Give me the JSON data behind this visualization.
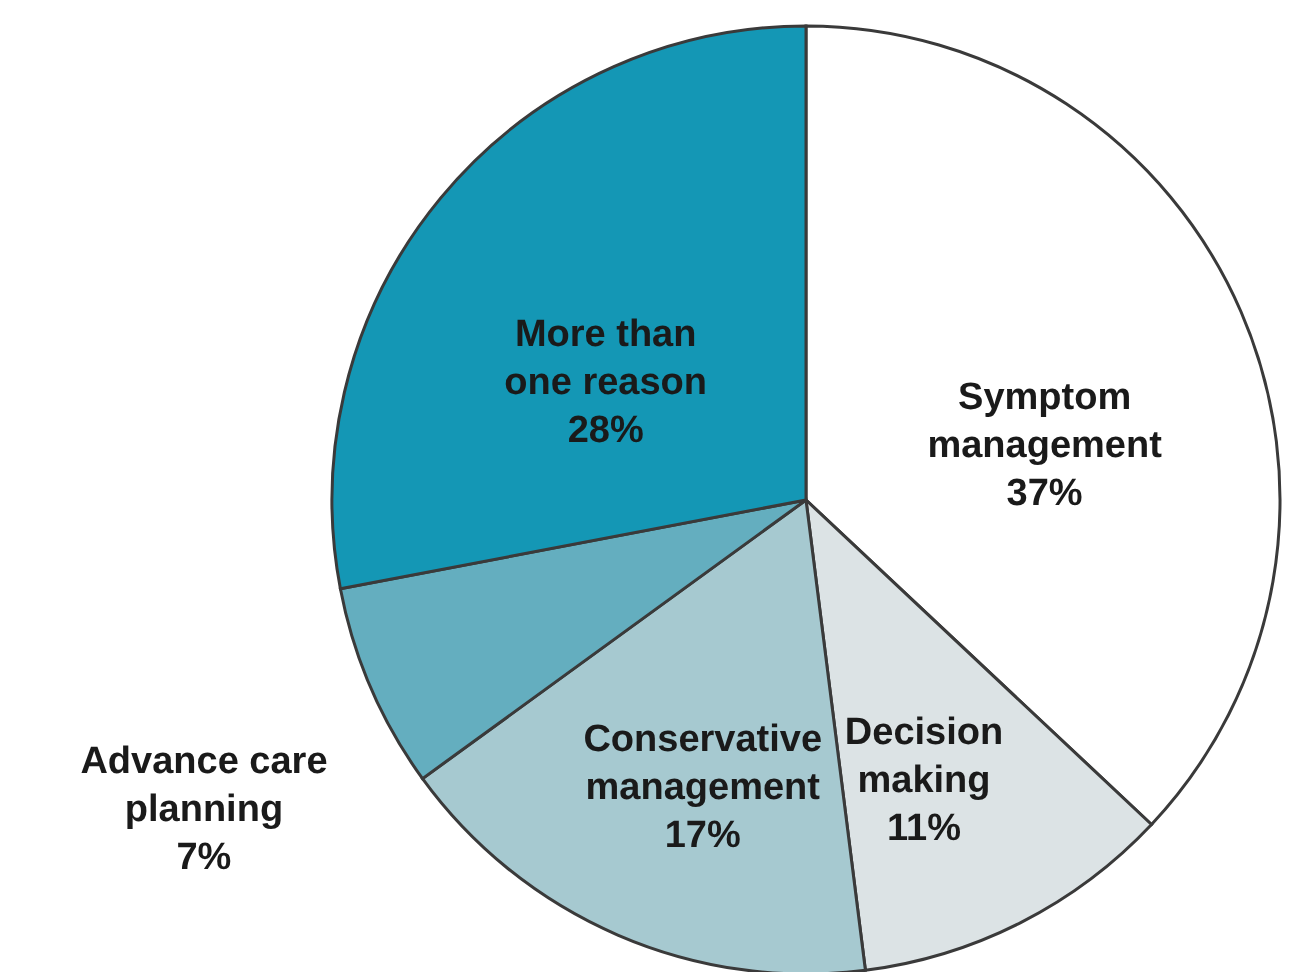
{
  "chart_data": {
    "type": "pie",
    "categories": [
      "Symptom management",
      "Decision making",
      "Conservative management",
      "Advance care planning",
      "More than one reason"
    ],
    "values": [
      37,
      11,
      17,
      7,
      28
    ],
    "value_labels": [
      "37%",
      "11%",
      "17%",
      "7%",
      "28%"
    ],
    "colors": [
      "#ffffff",
      "#dce3e5",
      "#a6c9d0",
      "#64aebf",
      "#1497b5"
    ]
  }
}
